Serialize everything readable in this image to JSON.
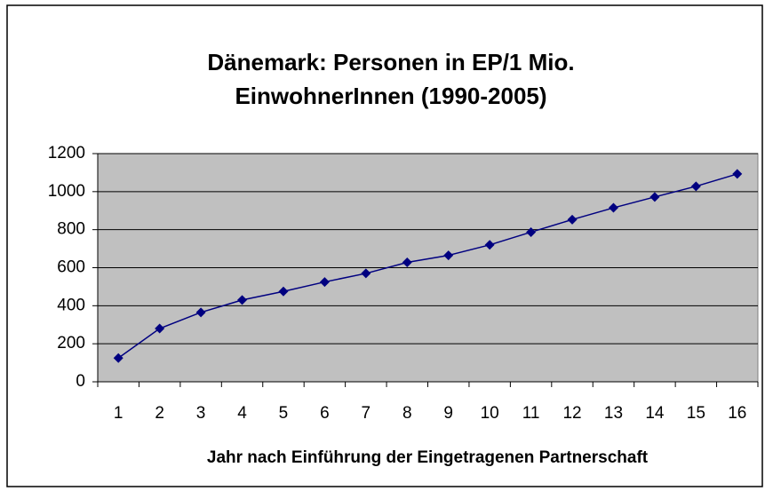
{
  "chart_data": {
    "type": "line",
    "title": [
      "Dänemark: Personen in EP/1 Mio.",
      "EinwohnerInnen (1990-2005)"
    ],
    "x_label": "Jahr nach Einführung der Eingetragenen Partnerschaft",
    "categories": [
      "1",
      "2",
      "3",
      "4",
      "5",
      "6",
      "7",
      "8",
      "9",
      "10",
      "11",
      "12",
      "13",
      "14",
      "15",
      "16"
    ],
    "series": [
      {
        "color": "#000080",
        "values": [
          125,
          280,
          365,
          430,
          475,
          525,
          570,
          628,
          665,
          720,
          787,
          853,
          915,
          972,
          1028,
          1093
        ]
      }
    ],
    "ylim": [
      0,
      1200
    ],
    "yticks": [
      0,
      200,
      400,
      600,
      800,
      1000,
      1200
    ],
    "grid": true,
    "plot_background": "#c0c0c0"
  }
}
